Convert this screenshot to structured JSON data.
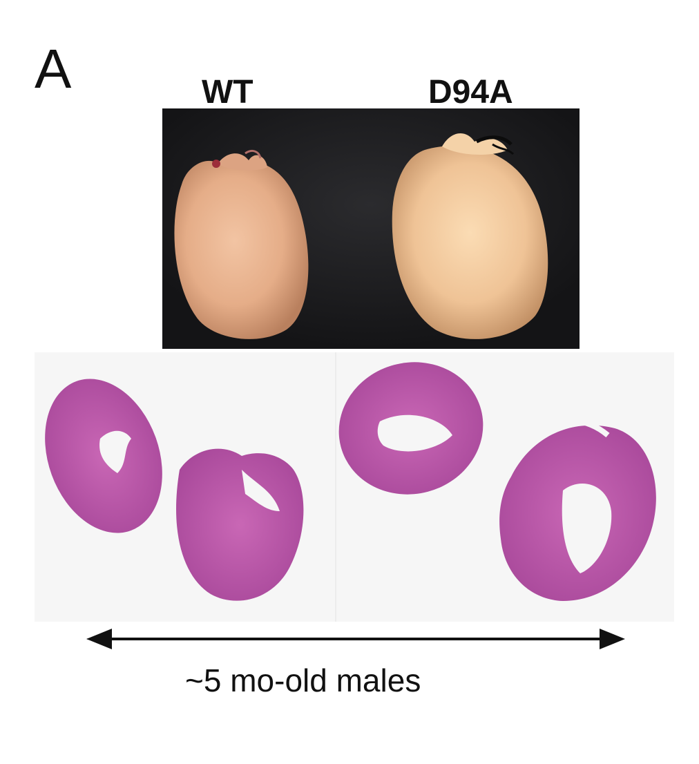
{
  "figure": {
    "panel_label": "A",
    "columns": [
      {
        "label": "WT"
      },
      {
        "label": "D94A"
      }
    ],
    "caption": "~5 mo-old males",
    "colors": {
      "photo_background": "#1b1b1d",
      "whole_heart": "#e7b48e",
      "whole_heart_enlarged": "#f0c79a",
      "histology_stain": "#c25aa8",
      "histology_background": "#f6f6f6"
    }
  }
}
